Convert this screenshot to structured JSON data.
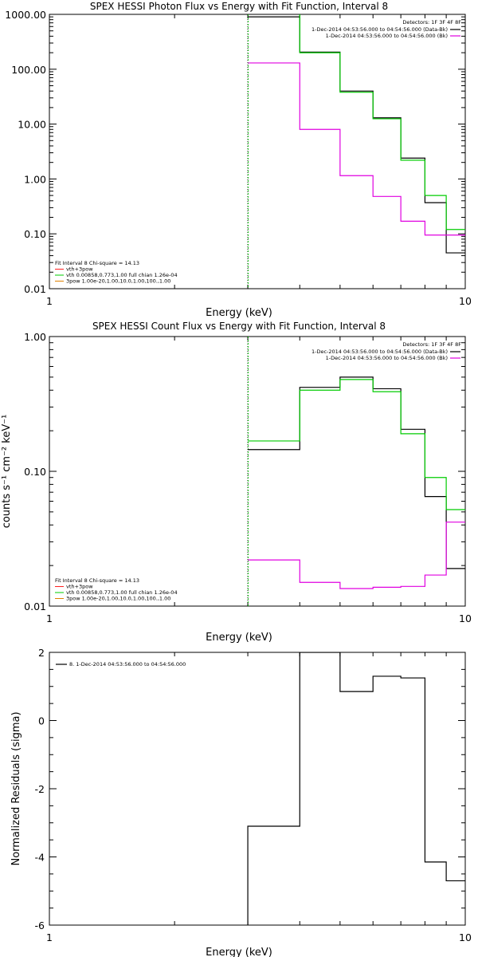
{
  "colors": {
    "black": "#000000",
    "magenta": "#e000e0",
    "green": "#00cc00",
    "orange": "#e08000",
    "red": "#ff2020",
    "bg": "#ffffff"
  },
  "chart_data": [
    {
      "type": "line",
      "title": "SPEX HESSI Photon Flux vs Energy with Fit Function, Interval 8",
      "xlabel": "Energy (keV)",
      "ylabel": "",
      "xscale": "log",
      "yscale": "log",
      "xlim": [
        1,
        10
      ],
      "ylim": [
        0.01,
        1000
      ],
      "xticks": [
        "1",
        "10"
      ],
      "yticks": [
        "0.01",
        "0.10",
        "1.00",
        "10.00",
        "100.00",
        "1000.00"
      ],
      "vline_x": 3,
      "bin_edges": [
        3,
        4,
        5,
        6,
        7,
        8,
        9,
        10
      ],
      "series": [
        {
          "name": "1-Dec-2014 04:53:56.000 to 04:54:56.000 (Data-Bk)",
          "color": "#000000",
          "values": [
            900,
            205,
            40,
            13,
            2.4,
            0.37,
            0.045
          ]
        },
        {
          "name": "1-Dec-2014 04:53:56.000 to 04:54:56.000 (Bk)",
          "color": "#e000e0",
          "values": [
            130,
            8,
            1.15,
            0.48,
            0.17,
            0.095,
            0.095
          ]
        },
        {
          "name": "",
          "color": "#00cc00",
          "values": [
            1050,
            200,
            38,
            12.5,
            2.2,
            0.5,
            0.12
          ]
        }
      ],
      "legend_header": "Detectors: 1F 3F 4F 8F",
      "legend_position": "top-right",
      "fit_text": [
        "Fit Interval 8   Chi-square = 14.13",
        "vth+3pow",
        "vth 0.00858,0.773,1.00   full chian 1.26e-04",
        "3pow 1.00e-20,1.00,10.0,1.00,100.,1.00"
      ],
      "fit_text_position": "bottom-left"
    },
    {
      "type": "line",
      "title": "SPEX HESSI Count Flux vs Energy with Fit Function, Interval 8",
      "xlabel": "Energy (keV)",
      "ylabel": "counts s⁻¹ cm⁻² keV⁻¹",
      "xscale": "log",
      "yscale": "log",
      "xlim": [
        1,
        10
      ],
      "ylim": [
        0.01,
        1
      ],
      "xticks": [
        "1",
        "10"
      ],
      "yticks": [
        "0.01",
        "0.10",
        "1.00"
      ],
      "vline_x": 3,
      "bin_edges": [
        3,
        4,
        5,
        6,
        7,
        8,
        9,
        10
      ],
      "series": [
        {
          "name": "1-Dec-2014 04:53:56.000 to 04:54:56.000 (Data-Bk)",
          "color": "#000000",
          "values": [
            0.145,
            0.42,
            0.5,
            0.41,
            0.205,
            0.065,
            0.019
          ]
        },
        {
          "name": "1-Dec-2014 04:53:56.000 to 04:54:56.000 (Bk)",
          "color": "#e000e0",
          "values": [
            0.022,
            0.015,
            0.0135,
            0.0138,
            0.014,
            0.017,
            0.042
          ]
        },
        {
          "name": "",
          "color": "#00cc00",
          "values": [
            0.168,
            0.4,
            0.48,
            0.39,
            0.19,
            0.09,
            0.052
          ]
        }
      ],
      "legend_header": "Detectors: 1F 3F 4F 8F",
      "legend_position": "top-right",
      "fit_text": [
        "Fit Interval 8   Chi-square = 14.13",
        "vth+3pow",
        "vth 0.00858,0.773,1.00   full chian 1.26e-04",
        "3pow 1.00e-20,1.00,10.0,1.00,100.,1.00"
      ],
      "fit_text_position": "bottom-left"
    },
    {
      "type": "line",
      "title": "",
      "xlabel": "Energy (keV)",
      "ylabel": "Normalized Residuals (sigma)",
      "xscale": "log",
      "yscale": "linear",
      "xlim": [
        1,
        10
      ],
      "ylim": [
        -6,
        2
      ],
      "xticks": [
        "1",
        "10"
      ],
      "yticks": [
        "-6",
        "-4",
        "-2",
        "0",
        "2"
      ],
      "bin_edges": [
        3,
        4,
        5,
        6,
        7,
        8,
        9,
        10
      ],
      "series": [
        {
          "name": "8.  1-Dec-2014 04:53:56.000 to 04:54:56.000",
          "color": "#000000",
          "values": [
            -3.1,
            2.0,
            0.85,
            1.3,
            1.25,
            -4.15,
            -4.7
          ]
        }
      ],
      "legend_position": "top-left"
    }
  ]
}
